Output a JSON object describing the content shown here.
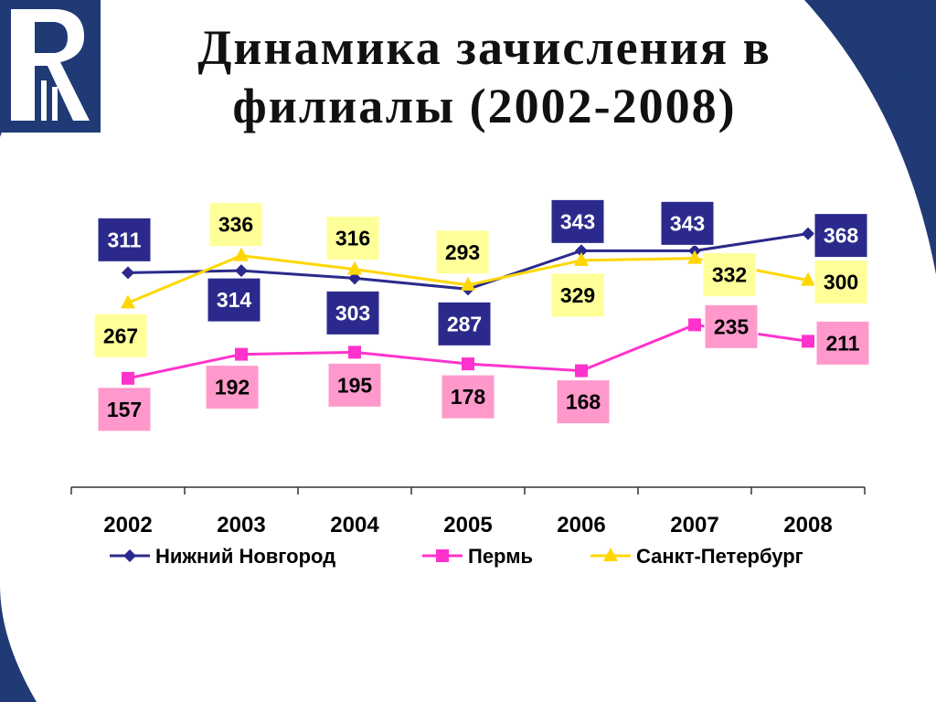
{
  "slide": {
    "title_line1": "Динамика зачисления в",
    "title_line2": "филиалы (2002-2008)"
  },
  "colors": {
    "background_navy": "#1f3a75",
    "slide_white": "#ffffff",
    "nizhny": "#2b2a8c",
    "perm": "#ff33cc",
    "spb": "#ffd700",
    "perm_label_bg": "#ff99cc",
    "spb_label_bg": "#ffff99"
  },
  "logo": {
    "icon": "hse-monogram-logo"
  },
  "chart_data": {
    "type": "line",
    "categories": [
      "2002",
      "2003",
      "2004",
      "2005",
      "2006",
      "2007",
      "2008"
    ],
    "series": [
      {
        "name": "Нижний Новгород",
        "values": [
          311,
          314,
          303,
          287,
          343,
          343,
          368
        ],
        "marker": "diamond"
      },
      {
        "name": "Пермь",
        "values": [
          157,
          192,
          195,
          178,
          168,
          235,
          211
        ],
        "marker": "square"
      },
      {
        "name": "Санкт-Петербург",
        "values": [
          267,
          336,
          316,
          293,
          329,
          332,
          300
        ],
        "marker": "triangle"
      }
    ],
    "legend_position": "bottom",
    "grid": false,
    "data_labels": true
  }
}
